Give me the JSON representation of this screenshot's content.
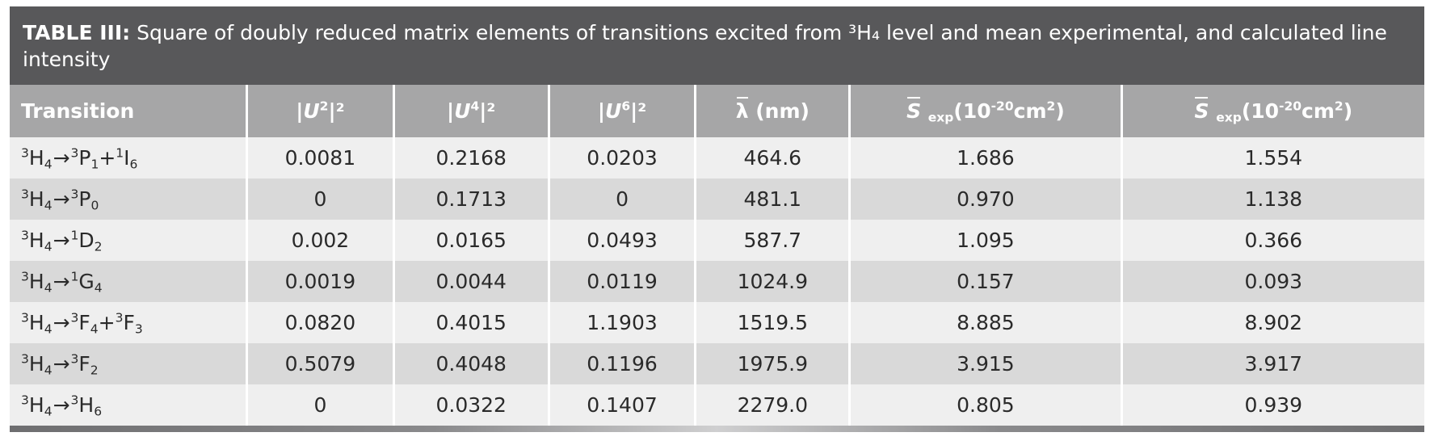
{
  "caption": {
    "label": "TABLE III:",
    "text": "Square of doubly reduced matrix elements of transitions excited from ³H₄ level and mean experimental, and calculated line intensity"
  },
  "headers": {
    "transition": "Transition",
    "u2": {
      "symbol": "U",
      "sup": "2",
      "pre": "|",
      "post": "|²"
    },
    "u4": {
      "symbol": "U",
      "sup": "4",
      "pre": "|",
      "post": "|²"
    },
    "u6": {
      "symbol": "U",
      "sup": "6",
      "pre": "|",
      "post": "|²"
    },
    "lambda": {
      "symbol": "λ",
      "unit": "(nm)"
    },
    "s_exp": {
      "symbol": "S",
      "sub": "exp",
      "unit": "(10",
      "exp": "-20",
      "unit2": "cm",
      "sq": "2",
      "close": ")"
    },
    "s_calc": {
      "symbol": "S",
      "sub": "exp",
      "unit": "(10",
      "exp": "-20",
      "unit2": "cm",
      "sq": "2",
      "close": ")"
    }
  },
  "rows": [
    {
      "t_init_sup": "3",
      "t_init": "H",
      "t_init_sub": "4",
      "arrow": "→",
      "t_final": [
        {
          "sup": "3",
          "base": "P",
          "sub": "1"
        },
        {
          "sep": "+",
          "sup": "1",
          "base": "I",
          "sub": "6"
        }
      ],
      "u2": "0.0081",
      "u4": "0.2168",
      "u6": "0.0203",
      "lambda": "464.6",
      "s_exp": "1.686",
      "s_calc": "1.554"
    },
    {
      "t_init_sup": "3",
      "t_init": "H",
      "t_init_sub": "4",
      "arrow": "→",
      "t_final": [
        {
          "sup": "3",
          "base": "P",
          "sub": "0"
        }
      ],
      "u2": "0",
      "u4": "0.1713",
      "u6": "0",
      "lambda": "481.1",
      "s_exp": "0.970",
      "s_calc": "1.138"
    },
    {
      "t_init_sup": "3",
      "t_init": "H",
      "t_init_sub": "4",
      "arrow": "→",
      "t_final": [
        {
          "sup": "1",
          "base": "D",
          "sub": "2"
        }
      ],
      "u2": "0.002",
      "u4": "0.0165",
      "u6": "0.0493",
      "lambda": "587.7",
      "s_exp": "1.095",
      "s_calc": "0.366"
    },
    {
      "t_init_sup": "3",
      "t_init": "H",
      "t_init_sub": "4",
      "arrow": "→",
      "t_final": [
        {
          "sup": "1",
          "base": "G",
          "sub": "4"
        }
      ],
      "u2": "0.0019",
      "u4": "0.0044",
      "u6": "0.0119",
      "lambda": "1024.9",
      "s_exp": "0.157",
      "s_calc": "0.093"
    },
    {
      "t_init_sup": "3",
      "t_init": "H",
      "t_init_sub": "4",
      "arrow": "→",
      "t_final": [
        {
          "sup": "3",
          "base": "F",
          "sub": "4"
        },
        {
          "sep": "+",
          "sup": "3",
          "base": "F",
          "sub": "3"
        }
      ],
      "u2": "0.0820",
      "u4": "0.4015",
      "u6": "1.1903",
      "lambda": "1519.5",
      "s_exp": "8.885",
      "s_calc": "8.902"
    },
    {
      "t_init_sup": "3",
      "t_init": "H",
      "t_init_sub": "4",
      "arrow": "→",
      "t_final": [
        {
          "sup": "3",
          "base": "F",
          "sub": "2"
        }
      ],
      "u2": "0.5079",
      "u4": "0.4048",
      "u6": "0.1196",
      "lambda": "1975.9",
      "s_exp": "3.915",
      "s_calc": "3.917"
    },
    {
      "t_init_sup": "3",
      "t_init": "H",
      "t_init_sub": "4",
      "arrow": "→",
      "t_final": [
        {
          "sup": "3",
          "base": "H",
          "sub": "6"
        }
      ],
      "u2": "0",
      "u4": "0.0322",
      "u6": "0.1407",
      "lambda": "2279.0",
      "s_exp": "0.805",
      "s_calc": "0.939"
    }
  ]
}
